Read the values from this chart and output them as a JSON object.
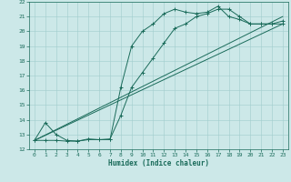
{
  "xlabel": "Humidex (Indice chaleur)",
  "xlim": [
    -0.5,
    23.5
  ],
  "ylim": [
    12,
    22
  ],
  "xticks": [
    0,
    1,
    2,
    3,
    4,
    5,
    6,
    7,
    8,
    9,
    10,
    11,
    12,
    13,
    14,
    15,
    16,
    17,
    18,
    19,
    20,
    21,
    22,
    23
  ],
  "yticks": [
    12,
    13,
    14,
    15,
    16,
    17,
    18,
    19,
    20,
    21,
    22
  ],
  "bg_color": "#cce8e8",
  "grid_color": "#a0cccc",
  "line_color": "#1a6b5a",
  "line1_x": [
    0,
    1,
    2,
    3,
    4,
    5,
    6,
    7,
    8,
    9,
    10,
    11,
    12,
    13,
    14,
    15,
    16,
    17,
    18,
    19,
    20,
    21,
    22,
    23
  ],
  "line1_y": [
    12.6,
    13.8,
    13.0,
    12.6,
    12.55,
    12.7,
    12.65,
    12.65,
    16.2,
    19.0,
    20.0,
    20.5,
    21.2,
    21.5,
    21.3,
    21.2,
    21.3,
    21.7,
    21.0,
    20.8,
    20.5,
    20.5,
    20.5,
    20.5
  ],
  "line2_x": [
    0,
    1,
    2,
    3,
    4,
    5,
    6,
    7,
    8,
    9,
    10,
    11,
    12,
    13,
    14,
    15,
    16,
    17,
    18,
    19,
    20,
    21,
    22,
    23
  ],
  "line2_y": [
    12.6,
    12.6,
    12.6,
    12.55,
    12.55,
    12.65,
    12.65,
    12.7,
    14.3,
    16.2,
    17.2,
    18.2,
    19.2,
    20.2,
    20.5,
    21.0,
    21.2,
    21.5,
    21.5,
    21.0,
    20.5,
    20.5,
    20.5,
    20.7
  ],
  "line3_x": [
    0,
    23
  ],
  "line3_y": [
    12.6,
    20.5
  ],
  "line4_x": [
    0,
    23
  ],
  "line4_y": [
    12.6,
    21.0
  ]
}
